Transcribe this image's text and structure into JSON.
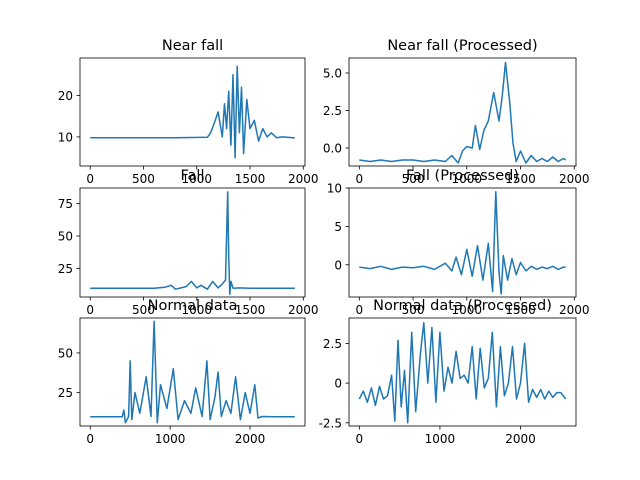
{
  "chart_data": [
    {
      "type": "line",
      "title": "Near fall",
      "xlim": [
        -96,
        2016
      ],
      "ylim": [
        3,
        29
      ],
      "xticks": [
        0,
        500,
        1000,
        1500,
        2000
      ],
      "yticks": [
        10,
        20
      ],
      "series": [
        {
          "color": "#1f77b4",
          "x": [
            0,
            200,
            400,
            600,
            800,
            1100,
            1130,
            1160,
            1200,
            1240,
            1260,
            1280,
            1300,
            1320,
            1340,
            1360,
            1380,
            1400,
            1420,
            1440,
            1470,
            1500,
            1540,
            1580,
            1620,
            1660,
            1700,
            1750,
            1800,
            1850,
            1900,
            1920
          ],
          "y": [
            9.8,
            9.8,
            9.8,
            9.8,
            9.8,
            9.9,
            11,
            13,
            16,
            10,
            18,
            12,
            21,
            8,
            25,
            5,
            27,
            11,
            22,
            6,
            19,
            12,
            14,
            9,
            12,
            10,
            11,
            9.8,
            10,
            9.9,
            9.8,
            9.8
          ]
        }
      ]
    },
    {
      "type": "line",
      "title": "Near fall (Processed)",
      "xlim": [
        -96,
        2016
      ],
      "ylim": [
        -1.2,
        6.0
      ],
      "xticks": [
        0,
        500,
        1000,
        1500,
        2000
      ],
      "yticks": [
        -0.0,
        2.5,
        5.0
      ],
      "yticklabels": [
        "0.0",
        "2.5",
        "5.0"
      ],
      "series": [
        {
          "color": "#1f77b4",
          "x": [
            0,
            100,
            200,
            300,
            400,
            500,
            600,
            700,
            800,
            860,
            920,
            960,
            1000,
            1050,
            1080,
            1120,
            1160,
            1200,
            1250,
            1300,
            1330,
            1360,
            1400,
            1430,
            1460,
            1500,
            1550,
            1600,
            1650,
            1700,
            1750,
            1800,
            1850,
            1900,
            1920
          ],
          "y": [
            -0.8,
            -0.9,
            -0.8,
            -0.9,
            -0.8,
            -0.8,
            -0.9,
            -0.8,
            -0.9,
            -0.5,
            -1.0,
            -0.2,
            0.1,
            0.0,
            1.5,
            -0.1,
            1.2,
            1.8,
            3.7,
            1.8,
            3.5,
            5.7,
            3.0,
            0.3,
            -0.9,
            -0.2,
            -1.0,
            -0.5,
            -0.9,
            -0.7,
            -0.9,
            -0.6,
            -0.9,
            -0.7,
            -0.8
          ]
        }
      ]
    },
    {
      "type": "line",
      "title": "Fall",
      "xlim": [
        -96,
        2016
      ],
      "ylim": [
        3,
        87
      ],
      "xticks": [
        0,
        500,
        1000,
        1500,
        2000
      ],
      "yticks": [
        25,
        50,
        75
      ],
      "series": [
        {
          "color": "#1f77b4",
          "x": [
            0,
            300,
            600,
            700,
            760,
            800,
            900,
            950,
            1000,
            1040,
            1100,
            1150,
            1200,
            1240,
            1270,
            1290,
            1300,
            1310,
            1320,
            1340,
            1400,
            1500,
            1600,
            1700,
            1800,
            1920
          ],
          "y": [
            9.8,
            9.8,
            9.8,
            10.5,
            12,
            9,
            11,
            15,
            10,
            12,
            9,
            15,
            10,
            13,
            16,
            84,
            35,
            5,
            15,
            9.8,
            10,
            9.8,
            9.8,
            9.8,
            9.8,
            9.8
          ]
        }
      ]
    },
    {
      "type": "line",
      "title": "Fall (Processed)",
      "xlim": [
        -96,
        2016
      ],
      "ylim": [
        -4.2,
        10.0
      ],
      "xticks": [
        0,
        500,
        1000,
        1500,
        2000
      ],
      "yticks": [
        0,
        5,
        10
      ],
      "yticklabels": [
        "0",
        "5",
        "10"
      ],
      "series": [
        {
          "color": "#1f77b4",
          "x": [
            0,
            100,
            200,
            300,
            400,
            500,
            600,
            700,
            800,
            860,
            900,
            950,
            1000,
            1050,
            1100,
            1150,
            1200,
            1240,
            1270,
            1300,
            1320,
            1340,
            1380,
            1420,
            1460,
            1500,
            1550,
            1600,
            1650,
            1700,
            1750,
            1800,
            1850,
            1900,
            1920
          ],
          "y": [
            -0.3,
            -0.5,
            -0.2,
            -0.6,
            -0.3,
            -0.4,
            -0.2,
            -0.6,
            0.2,
            -0.8,
            1.0,
            -1.3,
            2.0,
            -1.5,
            2.5,
            -2.0,
            2.8,
            -3.5,
            9.5,
            -1.0,
            -3.8,
            1.2,
            -2.0,
            0.8,
            -1.3,
            0.3,
            -0.8,
            -0.2,
            -0.6,
            -0.3,
            -0.5,
            -0.2,
            -0.6,
            -0.3,
            -0.3
          ]
        }
      ]
    },
    {
      "type": "line",
      "title": "Normal data",
      "xlim": [
        -128,
        2688
      ],
      "ylim": [
        4,
        72
      ],
      "xticks": [
        0,
        1000,
        2000
      ],
      "yticks": [
        25,
        50
      ],
      "series": [
        {
          "color": "#1f77b4",
          "x": [
            0,
            200,
            400,
            420,
            440,
            480,
            500,
            520,
            560,
            620,
            700,
            760,
            800,
            840,
            880,
            960,
            1040,
            1100,
            1180,
            1260,
            1320,
            1400,
            1460,
            1500,
            1560,
            1600,
            1640,
            1700,
            1760,
            1820,
            1880,
            1940,
            2000,
            2060,
            2100,
            2150,
            2300,
            2560
          ],
          "y": [
            9.8,
            9.8,
            9.8,
            14,
            6,
            10,
            45,
            8,
            25,
            12,
            35,
            10,
            70,
            6,
            30,
            15,
            40,
            8,
            20,
            12,
            28,
            10,
            45,
            8,
            22,
            38,
            10,
            20,
            12,
            35,
            8,
            25,
            12,
            30,
            9,
            10,
            9.8,
            9.8
          ]
        }
      ]
    },
    {
      "type": "line",
      "title": "Normal data (Processed)",
      "xlim": [
        -128,
        2688
      ],
      "ylim": [
        -2.7,
        4.1
      ],
      "xticks": [
        0,
        1000,
        2000
      ],
      "yticks": [
        -2.5,
        0.0,
        2.5
      ],
      "series": [
        {
          "color": "#1f77b4",
          "x": [
            0,
            50,
            100,
            150,
            200,
            250,
            300,
            350,
            400,
            440,
            480,
            520,
            560,
            600,
            650,
            700,
            760,
            800,
            850,
            900,
            950,
            1000,
            1050,
            1100,
            1150,
            1200,
            1250,
            1300,
            1350,
            1400,
            1450,
            1500,
            1550,
            1600,
            1650,
            1700,
            1750,
            1800,
            1850,
            1900,
            1950,
            2000,
            2050,
            2100,
            2150,
            2200,
            2250,
            2300,
            2350,
            2400,
            2450,
            2500,
            2560
          ],
          "y": [
            -1.0,
            -0.5,
            -1.2,
            -0.3,
            -1.4,
            -0.2,
            -1.0,
            -0.8,
            0.5,
            -2.4,
            2.7,
            -1.5,
            0.8,
            -2.5,
            3.2,
            -1.8,
            2.0,
            3.8,
            0.0,
            3.5,
            -1.2,
            3.2,
            -0.5,
            1.0,
            0.0,
            2.0,
            0.3,
            0.5,
            0.0,
            2.3,
            -1.0,
            2.2,
            -0.3,
            0.3,
            3.2,
            -1.5,
            2.3,
            -0.8,
            0.0,
            2.3,
            -1.0,
            0.0,
            2.5,
            -1.2,
            -0.4,
            -0.9,
            -0.4,
            -1.0,
            -0.5,
            -0.9,
            -0.6,
            -0.6,
            -1.0
          ]
        }
      ]
    }
  ]
}
